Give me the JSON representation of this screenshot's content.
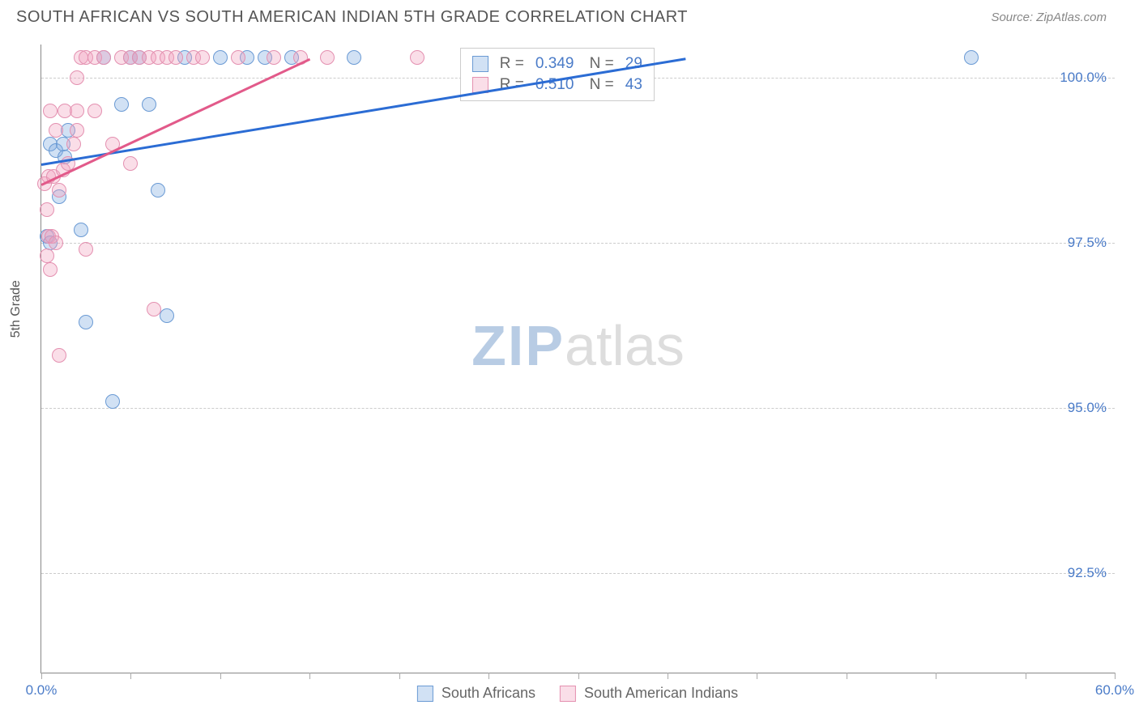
{
  "title": "SOUTH AFRICAN VS SOUTH AMERICAN INDIAN 5TH GRADE CORRELATION CHART",
  "source": "Source: ZipAtlas.com",
  "y_axis_label": "5th Grade",
  "watermark": {
    "zip": "ZIP",
    "atlas": "atlas"
  },
  "chart": {
    "type": "scatter",
    "xlim": [
      0,
      60
    ],
    "ylim": [
      91,
      100.5
    ],
    "x_ticks": [
      0,
      5,
      10,
      15,
      20,
      25,
      30,
      35,
      40,
      45,
      50,
      55,
      60
    ],
    "x_tick_labels": {
      "0": "0.0%",
      "60": "60.0%"
    },
    "y_grid": [
      92.5,
      95.0,
      97.5,
      100.0
    ],
    "y_tick_labels": [
      "92.5%",
      "95.0%",
      "97.5%",
      "100.0%"
    ],
    "grid_color": "#cccccc",
    "axis_color": "#888888",
    "tick_label_color": "#4a7bc8",
    "label_color": "#555555",
    "label_fontsize": 16,
    "tick_fontsize": 17,
    "background_color": "#ffffff",
    "point_radius": 9,
    "series": [
      {
        "name": "South Africans",
        "fill": "rgba(122,168,224,0.35)",
        "stroke": "#6a9ad4",
        "trend_color": "#2b6cd4",
        "R": "0.349",
        "N": "29",
        "trend": {
          "x1": 0,
          "y1": 98.7,
          "x2": 36,
          "y2": 100.3
        },
        "points": [
          [
            0.3,
            97.6
          ],
          [
            0.5,
            99.0
          ],
          [
            0.5,
            97.5
          ],
          [
            0.8,
            98.9
          ],
          [
            1.0,
            98.2
          ],
          [
            1.2,
            99.0
          ],
          [
            1.3,
            98.8
          ],
          [
            1.5,
            99.2
          ],
          [
            2.2,
            97.7
          ],
          [
            2.5,
            96.3
          ],
          [
            3.5,
            100.3
          ],
          [
            4.0,
            95.1
          ],
          [
            4.5,
            99.6
          ],
          [
            5.0,
            100.3
          ],
          [
            5.5,
            100.3
          ],
          [
            6.0,
            99.6
          ],
          [
            6.5,
            98.3
          ],
          [
            7.0,
            96.4
          ],
          [
            8.0,
            100.3
          ],
          [
            10.0,
            100.3
          ],
          [
            11.5,
            100.3
          ],
          [
            12.5,
            100.3
          ],
          [
            14.0,
            100.3
          ],
          [
            17.5,
            100.3
          ],
          [
            26.0,
            100.3
          ],
          [
            27.0,
            99.9
          ],
          [
            31.0,
            100.3
          ],
          [
            32.0,
            100.3
          ],
          [
            52.0,
            100.3
          ]
        ]
      },
      {
        "name": "South American Indians",
        "fill": "rgba(240,160,190,0.35)",
        "stroke": "#e490b0",
        "trend_color": "#e25a8a",
        "R": "0.510",
        "N": "43",
        "trend": {
          "x1": 0,
          "y1": 98.4,
          "x2": 15,
          "y2": 100.3
        },
        "points": [
          [
            0.2,
            98.4
          ],
          [
            0.3,
            98.0
          ],
          [
            0.3,
            97.3
          ],
          [
            0.4,
            97.6
          ],
          [
            0.4,
            98.5
          ],
          [
            0.5,
            99.5
          ],
          [
            0.5,
            97.1
          ],
          [
            0.6,
            97.6
          ],
          [
            0.7,
            98.5
          ],
          [
            0.8,
            97.5
          ],
          [
            0.8,
            99.2
          ],
          [
            1.0,
            98.3
          ],
          [
            1.0,
            95.8
          ],
          [
            1.2,
            98.6
          ],
          [
            1.3,
            99.5
          ],
          [
            1.5,
            98.7
          ],
          [
            1.8,
            99.0
          ],
          [
            2.0,
            99.5
          ],
          [
            2.0,
            100.0
          ],
          [
            2.0,
            99.2
          ],
          [
            2.2,
            100.3
          ],
          [
            2.5,
            97.4
          ],
          [
            2.5,
            100.3
          ],
          [
            3.0,
            100.3
          ],
          [
            3.0,
            99.5
          ],
          [
            3.5,
            100.3
          ],
          [
            4.0,
            99.0
          ],
          [
            4.5,
            100.3
          ],
          [
            5.0,
            100.3
          ],
          [
            5.0,
            98.7
          ],
          [
            5.5,
            100.3
          ],
          [
            6.0,
            100.3
          ],
          [
            6.3,
            96.5
          ],
          [
            6.5,
            100.3
          ],
          [
            7.0,
            100.3
          ],
          [
            7.5,
            100.3
          ],
          [
            8.5,
            100.3
          ],
          [
            9.0,
            100.3
          ],
          [
            11.0,
            100.3
          ],
          [
            13.0,
            100.3
          ],
          [
            14.5,
            100.3
          ],
          [
            16.0,
            100.3
          ],
          [
            21.0,
            100.3
          ]
        ]
      }
    ],
    "stats_box": {
      "left_pct": 39,
      "top_pct": 0.5
    },
    "legend_labels": [
      "South Africans",
      "South American Indians"
    ],
    "stats_label_R": "R =",
    "stats_label_N": "N ="
  }
}
